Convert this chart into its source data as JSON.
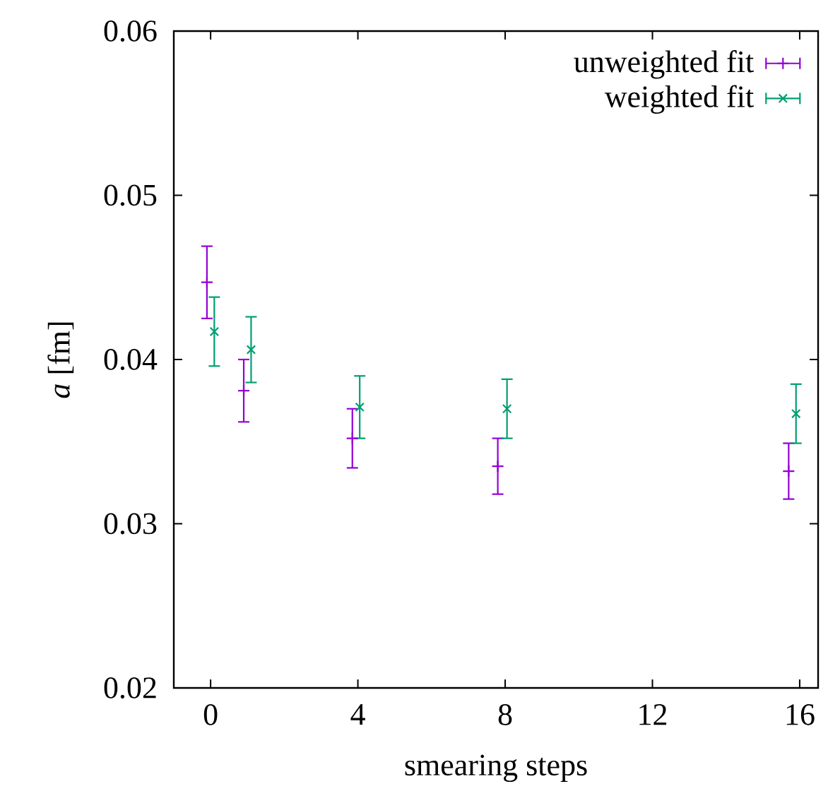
{
  "chart_data": {
    "type": "scatter",
    "xlabel": "smearing steps",
    "ylabel": "*a* [fm]",
    "xlim": [
      -1,
      16.5
    ],
    "xticks": [
      0,
      4,
      8,
      12,
      16
    ],
    "ylim": [
      0.02,
      0.06
    ],
    "yticks": [
      0.02,
      0.03,
      0.04,
      0.05,
      0.06
    ],
    "legend": "top right",
    "series": [
      {
        "name": "unweighted fit",
        "color": "#9400d3",
        "marker": "plus",
        "x": [
          -0.1,
          0.9,
          3.85,
          7.8,
          15.7
        ],
        "values": [
          0.0447,
          0.0381,
          0.0352,
          0.0335,
          0.0332
        ],
        "errors": [
          0.0022,
          0.0019,
          0.0018,
          0.0017,
          0.0017
        ]
      },
      {
        "name": "weighted fit",
        "color": "#009e73",
        "marker": "cross",
        "x": [
          0.1,
          1.1,
          4.05,
          8.05,
          15.9
        ],
        "values": [
          0.0417,
          0.0406,
          0.0371,
          0.037,
          0.0367
        ],
        "errors": [
          0.0021,
          0.002,
          0.0019,
          0.0018,
          0.0018
        ]
      }
    ]
  }
}
